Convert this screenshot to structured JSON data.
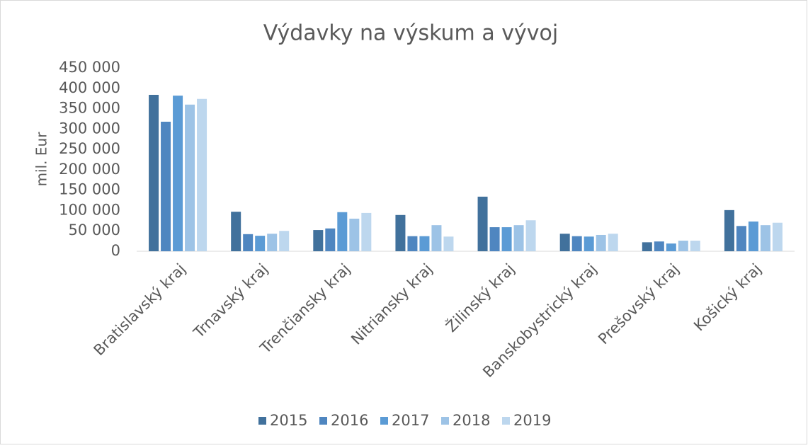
{
  "chart_data": {
    "type": "bar",
    "title": "Výdavky na výskum a vývoj",
    "y_label": "mil. Eur",
    "categories": [
      "Bratislavský kraj",
      "Trnavský kraj",
      "Trenčiansky kraj",
      "Nitriansky kraj",
      "Žilinský kraj",
      "Banskobystrický kraj",
      "Prešovský kraj",
      "Košický kraj"
    ],
    "series": [
      {
        "name": "2015",
        "color": "#41719c",
        "values": [
          384000,
          97000,
          52000,
          89000,
          134000,
          43000,
          22000,
          101000
        ]
      },
      {
        "name": "2016",
        "color": "#4f86c0",
        "values": [
          318000,
          42000,
          56000,
          37000,
          59000,
          37000,
          24000,
          62000
        ]
      },
      {
        "name": "2017",
        "color": "#5b9bd5",
        "values": [
          382000,
          38000,
          96000,
          37000,
          59000,
          36000,
          19000,
          73000
        ]
      },
      {
        "name": "2018",
        "color": "#9dc3e6",
        "values": [
          360000,
          43000,
          80000,
          64000,
          64000,
          40000,
          26000,
          64000
        ]
      },
      {
        "name": "2019",
        "color": "#bdd7ee",
        "values": [
          374000,
          50000,
          94000,
          36000,
          76000,
          43000,
          26000,
          70000
        ]
      }
    ],
    "ylim": [
      0,
      450000
    ],
    "yticks": [
      0,
      {
        "value": 50000,
        "label": "50 000"
      },
      {
        "value": 100000,
        "label": "100 000"
      },
      {
        "value": 150000,
        "label": "150 000"
      },
      {
        "value": 200000,
        "label": "200 000"
      },
      {
        "value": 250000,
        "label": "250 000"
      },
      {
        "value": 300000,
        "label": "300 000"
      },
      {
        "value": 350000,
        "label": "350 000"
      },
      {
        "value": 400000,
        "label": "400 000"
      },
      {
        "value": 450000,
        "label": "450 000"
      }
    ],
    "grid": false,
    "legend": "bottom"
  }
}
